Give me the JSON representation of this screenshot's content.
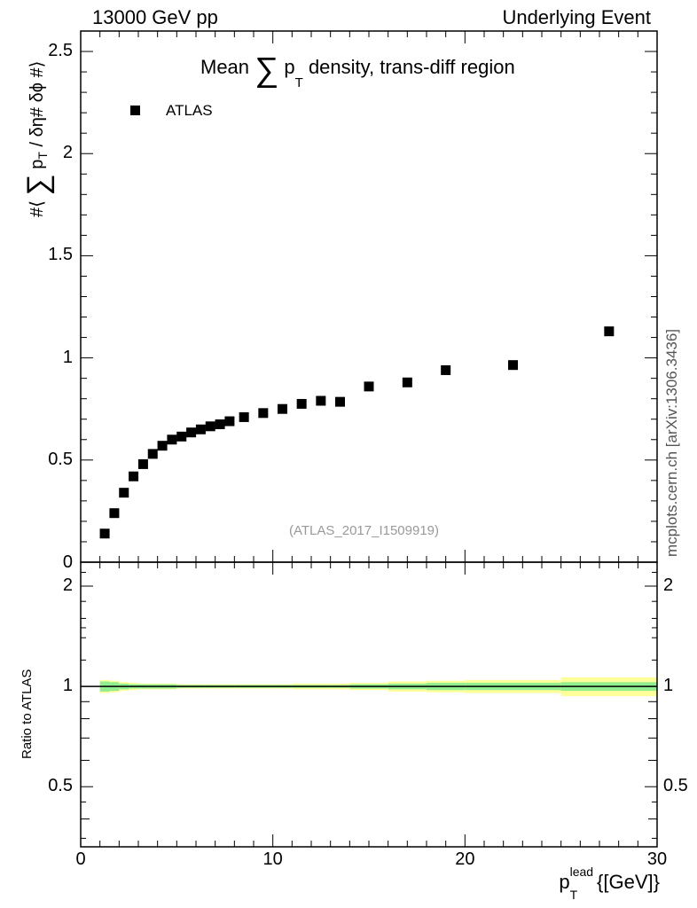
{
  "header": {
    "energy_label": "13000 GeV pp",
    "process_label": "Underlying Event"
  },
  "side_label": "mcplots.cern.ch [arXiv:1306.3436]",
  "chart_data": [
    {
      "type": "scatter",
      "title": "Mean ∑ pT density, trans-diff region",
      "title_parts": {
        "prefix": "Mean",
        "sum": "∑",
        "p": "p",
        "sub": "T",
        "suffix": "density, trans-diff region"
      },
      "ylabel": "#⟨ ∑ pT / δη# δϕ #⟩",
      "ylabel_parts": {
        "open": "#⟨",
        "sum": "∑",
        "p": "p",
        "sub": "T",
        "rest": "/ δη# δϕ #⟩"
      },
      "watermark": "(ATLAS_2017_I1509919)",
      "legend": {
        "placement": "top-left",
        "entries": [
          "ATLAS"
        ]
      },
      "xlim": [
        0,
        30
      ],
      "ylim": [
        0,
        2.6
      ],
      "y_ticks": [
        "0.5",
        "1",
        "1.5",
        "2",
        "2.5"
      ],
      "y_tick_values": [
        0.5,
        1,
        1.5,
        2,
        2.5
      ],
      "y_axis_bottom_label": "0",
      "series": [
        {
          "name": "ATLAS",
          "marker": "square",
          "x": [
            1.25,
            1.75,
            2.25,
            2.75,
            3.25,
            3.75,
            4.25,
            4.75,
            5.25,
            5.75,
            6.25,
            6.75,
            7.25,
            7.75,
            8.5,
            9.5,
            10.5,
            11.5,
            12.5,
            13.5,
            15,
            17,
            19,
            22.5,
            27.5
          ],
          "y": [
            0.14,
            0.24,
            0.34,
            0.42,
            0.48,
            0.53,
            0.57,
            0.6,
            0.615,
            0.635,
            0.65,
            0.665,
            0.675,
            0.69,
            0.71,
            0.73,
            0.75,
            0.775,
            0.79,
            0.785,
            0.86,
            0.88,
            0.94,
            0.965,
            1.13
          ]
        }
      ]
    },
    {
      "type": "band",
      "ylabel": "Ratio to ATLAS",
      "xlabel": "pT lead {[GeV]}",
      "xlabel_parts": {
        "p": "p",
        "sup": "lead",
        "sub": "T",
        "unit": "{[GeV]}"
      },
      "xlim": [
        0,
        30
      ],
      "ylim": [
        0.33,
        2.36
      ],
      "x_ticks": [
        "0",
        "10",
        "20",
        "30"
      ],
      "x_tick_values": [
        0,
        10,
        20,
        30
      ],
      "y_ticks": [
        "0.5",
        "1",
        "2"
      ],
      "y_tick_values": [
        0.5,
        1,
        2
      ],
      "reference_line": 1,
      "bins": [
        1,
        1.5,
        2,
        2.5,
        3,
        3.5,
        4,
        4.5,
        5,
        5.5,
        6,
        6.5,
        7,
        7.5,
        8,
        9,
        10,
        11,
        12,
        13,
        14,
        16,
        18,
        20,
        25,
        30
      ],
      "inner_band": [
        0.035,
        0.03,
        0.02,
        0.015,
        0.015,
        0.015,
        0.015,
        0.015,
        0.01,
        0.01,
        0.01,
        0.01,
        0.01,
        0.01,
        0.01,
        0.01,
        0.01,
        0.01,
        0.01,
        0.01,
        0.015,
        0.02,
        0.025,
        0.025,
        0.03
      ],
      "outer_band": [
        0.045,
        0.04,
        0.03,
        0.025,
        0.02,
        0.02,
        0.02,
        0.02,
        0.015,
        0.015,
        0.015,
        0.015,
        0.015,
        0.015,
        0.015,
        0.015,
        0.015,
        0.02,
        0.02,
        0.02,
        0.025,
        0.035,
        0.04,
        0.045,
        0.065
      ],
      "colors": {
        "inner": "#90ee90",
        "outer": "#ffff99",
        "line": "#000000"
      }
    }
  ]
}
